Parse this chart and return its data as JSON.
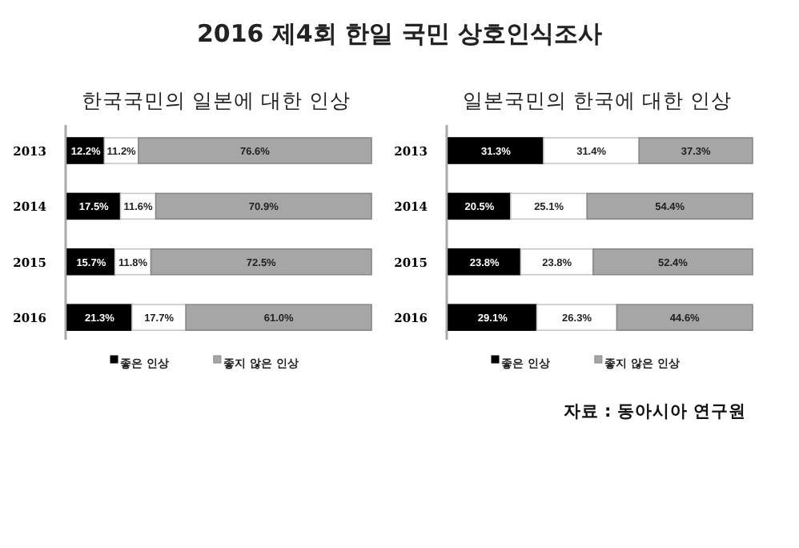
{
  "chart_data": [
    {
      "type": "bar",
      "title": "2016 제4회 한일 국민 상호인식조사",
      "subtitle": "한국국민의 일본에 대한 인상",
      "orientation": "horizontal",
      "stacked": true,
      "legend": "bottom",
      "categories": [
        "2013",
        "2014",
        "2015",
        "2016"
      ],
      "series": [
        {
          "name": "좋은 인상",
          "color": "#000000",
          "values": [
            12.2,
            17.5,
            15.7,
            21.3
          ],
          "value_labels": [
            "12.2%",
            "17.5%",
            "15.7%",
            "21.3%"
          ]
        },
        {
          "color": "#ffffff",
          "values": [
            11.2,
            11.6,
            11.8,
            17.7
          ],
          "value_labels": [
            "11.2%",
            "11.6%",
            "11.8%",
            "17.7%"
          ]
        },
        {
          "name": "좋지 않은 인상",
          "color": "#a6a6a6",
          "values": [
            76.6,
            70.9,
            72.5,
            61.0
          ],
          "value_labels": [
            "76.6%",
            "70.9%",
            "72.5%",
            "61.0%"
          ]
        }
      ]
    },
    {
      "type": "bar",
      "title": "일본국민의 한국에 대한 인상",
      "orientation": "horizontal",
      "stacked": true,
      "legend": "bottom",
      "categories": [
        "2013",
        "2014",
        "2015",
        "2016"
      ],
      "series": [
        {
          "name": "좋은 인상",
          "color": "#000000",
          "values": [
            31.3,
            20.5,
            23.8,
            29.1
          ],
          "value_labels": [
            "31.3%",
            "20.5%",
            "23.8%",
            "29.1%"
          ]
        },
        {
          "color": "#ffffff",
          "values": [
            31.4,
            25.1,
            23.8,
            26.3
          ],
          "value_labels": [
            "31.4%",
            "25.1%",
            "23.8%",
            "26.3%"
          ]
        },
        {
          "name": "좋지 않은 인상",
          "color": "#a6a6a6",
          "values": [
            37.3,
            54.4,
            52.4,
            44.6
          ],
          "value_labels": [
            "37.3%",
            "54.4%",
            "52.4%",
            "44.6%"
          ]
        }
      ],
      "annotations": [
        "자료 : 동아시아 연구원"
      ]
    }
  ]
}
